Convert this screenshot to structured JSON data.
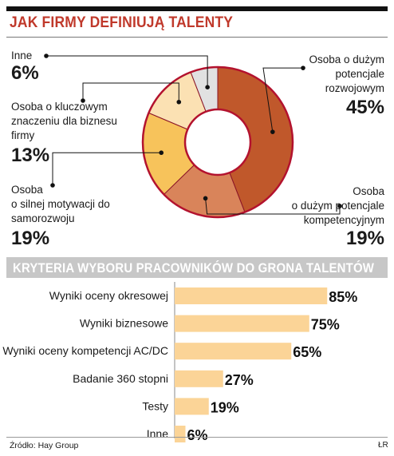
{
  "title": "JAK FIRMY DEFINIUJĄ TALENTY",
  "section2_title": "KRYTERIA WYBORU PRACOWNIKÓW DO GRONA TALENTÓW",
  "source": "Źródło: Hay Group",
  "credit": "ŁR",
  "donut_labels": {
    "rozwoj": {
      "l1": "Osoba o dużym",
      "l2": "potencjale",
      "l3": "rozwojowym",
      "pct": "45%"
    },
    "kompet": {
      "l1": "Osoba",
      "l2": "o dużym potencjale",
      "l3": "kompetencyjnym",
      "pct": "19%"
    },
    "motyw": {
      "l1": "Osoba",
      "l2": "o silnej motywacji do",
      "l3": "samorozwoju",
      "pct": "19%"
    },
    "klucz": {
      "l1": "Osoba o kluczowym",
      "l2": "znaczeniu dla biznesu",
      "l3": "firmy",
      "pct": "13%"
    },
    "inne": {
      "l1": "Inne",
      "pct": "6%"
    }
  },
  "chart_data": [
    {
      "type": "pie",
      "title": "JAK FIRMY DEFINIUJĄ TALENTY",
      "donut": true,
      "slices": [
        {
          "label": "Osoba o dużym potencjale rozwojowym",
          "value": 45,
          "color": "#c0582b"
        },
        {
          "label": "Osoba o dużym potencjale kompetencyjnym",
          "value": 19,
          "color": "#d9845a"
        },
        {
          "label": "Osoba o silnej motywacji do samorozwoju",
          "value": 19,
          "color": "#f7c35b"
        },
        {
          "label": "Osoba o kluczowym znaczeniu dla biznesu firmy",
          "value": 13,
          "color": "#fbe1b3"
        },
        {
          "label": "Inne",
          "value": 6,
          "color": "#e1e1e1"
        }
      ],
      "outline_color": "#b3122e"
    },
    {
      "type": "bar",
      "orientation": "horizontal",
      "title": "KRYTERIA WYBORU PRACOWNIKÓW DO GRONA TALENTÓW",
      "categories": [
        "Wyniki oceny okresowej",
        "Wyniki biznesowe",
        "Wyniki oceny kompetencji AC/DC",
        "Badanie 360 stopni",
        "Testy",
        "Inne"
      ],
      "values": [
        85,
        75,
        65,
        27,
        19,
        6
      ],
      "value_labels": [
        "85%",
        "75%",
        "65%",
        "27%",
        "19%",
        "6%"
      ],
      "bar_color": "#fbd497",
      "xlim": [
        0,
        100
      ]
    }
  ]
}
